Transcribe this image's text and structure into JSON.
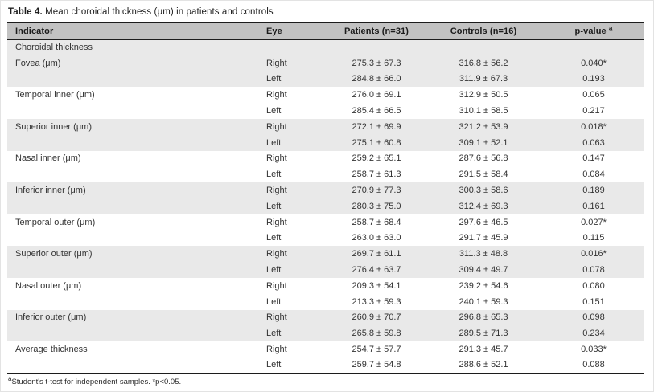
{
  "title": {
    "label": "Table 4.",
    "text": " Mean choroidal thickness (μm) in patients and controls"
  },
  "table": {
    "headers": [
      "Indicator",
      "Eye",
      "Patients (n=31)",
      "Controls (n=16)",
      "p-value"
    ],
    "p_value_superscript": "a",
    "rows": [
      {
        "indicator": "Choroidal thickness",
        "eye": "",
        "patients": "",
        "controls": "",
        "p_value": "",
        "shaded": true
      },
      {
        "indicator": "Fovea (μm)",
        "eye": "Right",
        "patients": "275.3 ± 67.3",
        "controls": "316.8 ± 56.2",
        "p_value": "0.040*",
        "shaded": true
      },
      {
        "indicator": "",
        "eye": "Left",
        "patients": "284.8 ± 66.0",
        "controls": "311.9 ± 67.3",
        "p_value": "0.193",
        "shaded": true
      },
      {
        "indicator": "Temporal inner (μm)",
        "eye": "Right",
        "patients": "276.0 ± 69.1",
        "controls": "312.9 ± 50.5",
        "p_value": "0.065",
        "shaded": false
      },
      {
        "indicator": "",
        "eye": "Left",
        "patients": "285.4 ± 66.5",
        "controls": "310.1 ± 58.5",
        "p_value": "0.217",
        "shaded": false
      },
      {
        "indicator": "Superior inner (μm)",
        "eye": "Right",
        "patients": "272.1 ± 69.9",
        "controls": "321.2 ± 53.9",
        "p_value": "0.018*",
        "shaded": true
      },
      {
        "indicator": "",
        "eye": "Left",
        "patients": "275.1 ± 60.8",
        "controls": "309.1 ± 52.1",
        "p_value": "0.063",
        "shaded": true
      },
      {
        "indicator": "Nasal inner (μm)",
        "eye": "Right",
        "patients": "259.2 ± 65.1",
        "controls": "287.6 ± 56.8",
        "p_value": "0.147",
        "shaded": false
      },
      {
        "indicator": "",
        "eye": "Left",
        "patients": "258.7 ± 61.3",
        "controls": "291.5 ± 58.4",
        "p_value": "0.084",
        "shaded": false
      },
      {
        "indicator": "Inferior inner (μm)",
        "eye": "Right",
        "patients": "270.9 ± 77.3",
        "controls": "300.3 ± 58.6",
        "p_value": "0.189",
        "shaded": true
      },
      {
        "indicator": "",
        "eye": "Left",
        "patients": "280.3 ± 75.0",
        "controls": "312.4 ± 69.3",
        "p_value": "0.161",
        "shaded": true
      },
      {
        "indicator": "Temporal outer (μm)",
        "eye": "Right",
        "patients": "258.7 ± 68.4",
        "controls": "297.6 ± 46.5",
        "p_value": "0.027*",
        "shaded": false
      },
      {
        "indicator": "",
        "eye": "Left",
        "patients": "263.0 ± 63.0",
        "controls": "291.7 ± 45.9",
        "p_value": "0.115",
        "shaded": false
      },
      {
        "indicator": "Superior outer (μm)",
        "eye": "Right",
        "patients": "269.7 ± 61.1",
        "controls": "311.3 ± 48.8",
        "p_value": "0.016*",
        "shaded": true
      },
      {
        "indicator": "",
        "eye": "Left",
        "patients": "276.4 ± 63.7",
        "controls": "309.4 ± 49.7",
        "p_value": "0.078",
        "shaded": true
      },
      {
        "indicator": "Nasal outer (μm)",
        "eye": "Right",
        "patients": "209.3 ± 54.1",
        "controls": "239.2 ± 54.6",
        "p_value": "0.080",
        "shaded": false
      },
      {
        "indicator": "",
        "eye": "Left",
        "patients": "213.3 ± 59.3",
        "controls": "240.1 ± 59.3",
        "p_value": "0.151",
        "shaded": false
      },
      {
        "indicator": "Inferior outer (μm)",
        "eye": "Right",
        "patients": "260.9 ± 70.7",
        "controls": "296.8 ± 65.3",
        "p_value": "0.098",
        "shaded": true
      },
      {
        "indicator": "",
        "eye": "Left",
        "patients": "265.8 ± 59.8",
        "controls": "289.5 ± 71.3",
        "p_value": "0.234",
        "shaded": true
      },
      {
        "indicator": "Average thickness",
        "eye": "Right",
        "patients": "254.7 ± 57.7",
        "controls": "291.3 ± 45.7",
        "p_value": "0.033*",
        "shaded": false
      },
      {
        "indicator": "",
        "eye": "Left",
        "patients": "259.7 ± 54.8",
        "controls": "288.6 ± 52.1",
        "p_value": "0.088",
        "shaded": false
      }
    ]
  },
  "footnote": {
    "superscript": "a",
    "text": "Student's t-test for independent samples. *p<0.05."
  },
  "colors": {
    "header_bg": "#c2c2c2",
    "row_shade_bg": "#e9e9e9",
    "rule_dark": "#1c1c1c",
    "text": "#333333"
  }
}
